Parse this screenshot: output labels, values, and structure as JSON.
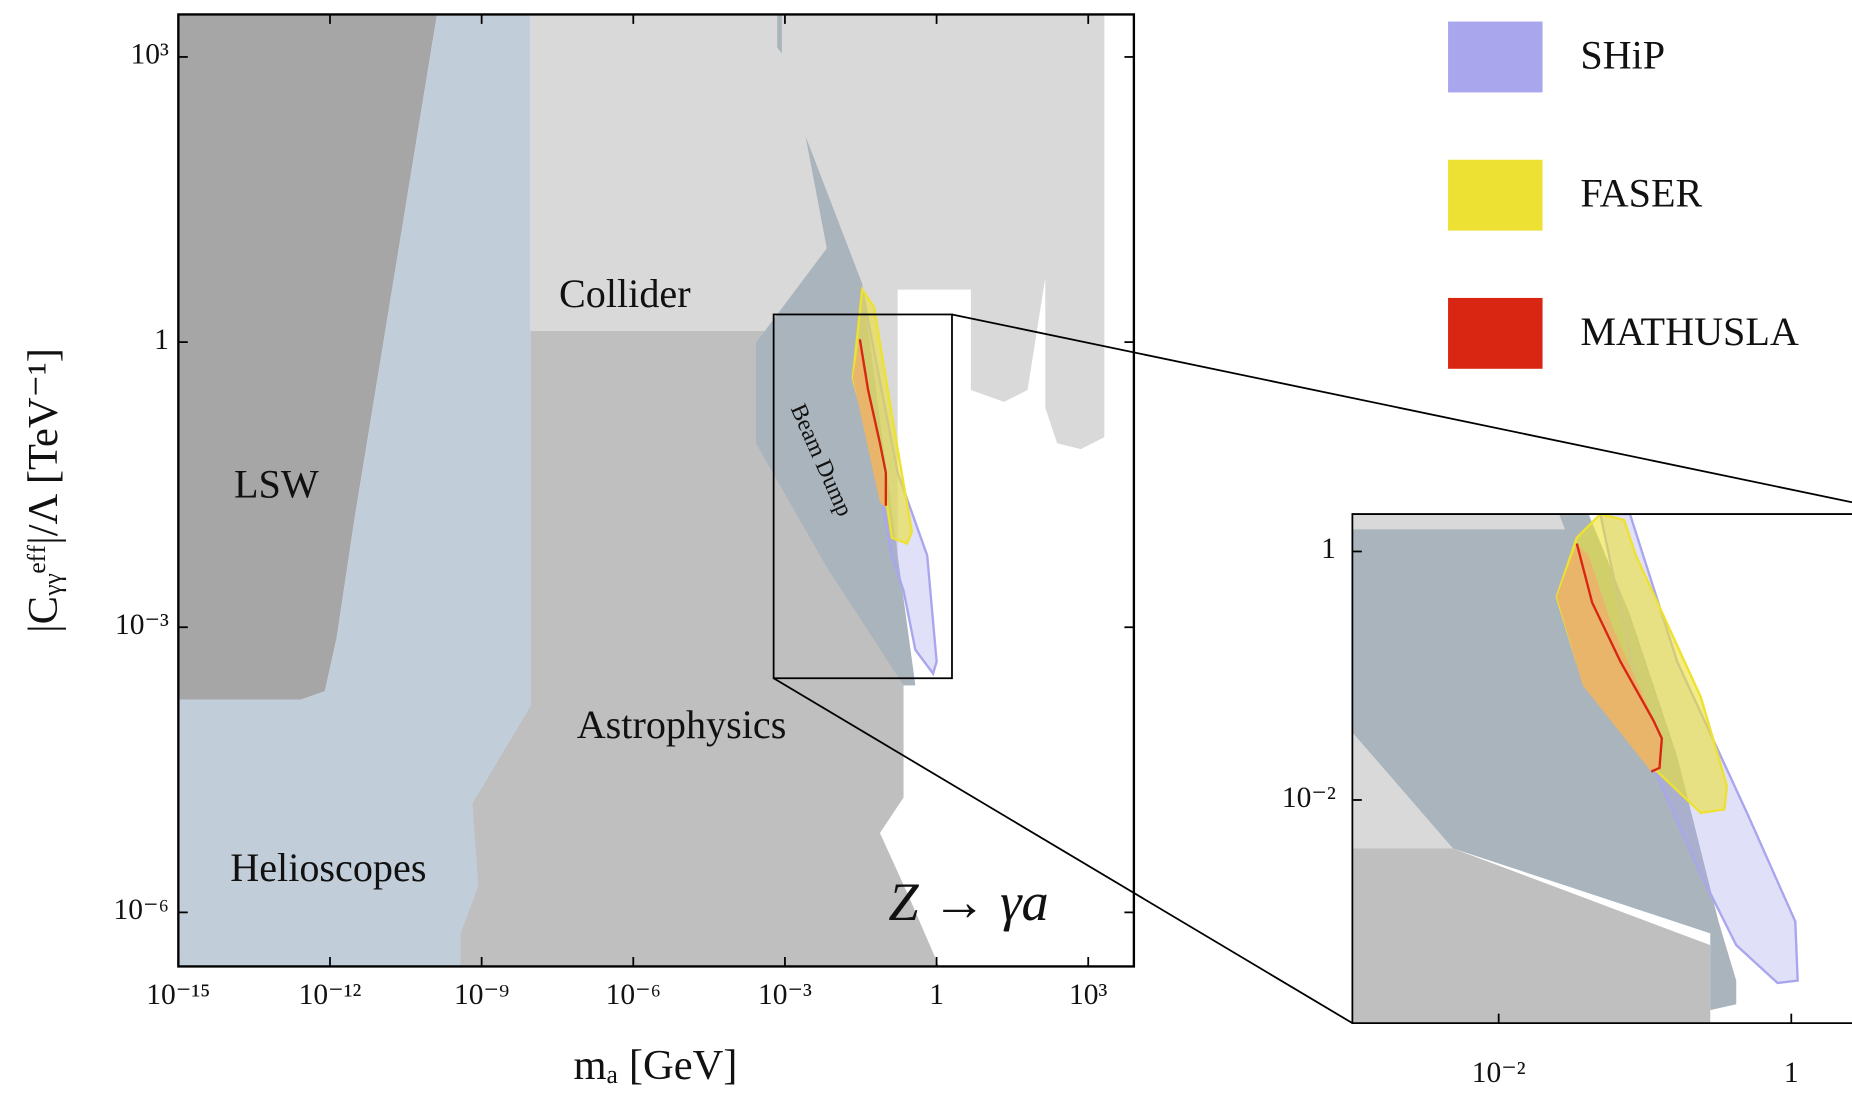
{
  "chart_data": [
    {
      "type": "region",
      "xlabel": "mₐ [GeV]",
      "ylabel": "|Cᵧᵧᵉᶠᶠ|/Λ [TeV⁻¹]",
      "log_x": true,
      "log_y": true,
      "xlim": [
        1e-15,
        8000
      ],
      "ylim": [
        2.7e-07,
        2800
      ],
      "xticks": [
        {
          "value": 1e-15,
          "label": "10⁻¹⁵"
        },
        {
          "value": 1e-12,
          "label": "10⁻¹²"
        },
        {
          "value": 1e-09,
          "label": "10⁻⁹"
        },
        {
          "value": 1e-06,
          "label": "10⁻⁶"
        },
        {
          "value": 0.001,
          "label": "10⁻³"
        },
        1,
        {
          "value": 1000,
          "label": "10³"
        }
      ],
      "yticks": [
        {
          "value": 1e-06,
          "label": "10⁻⁶"
        },
        {
          "value": 0.001,
          "label": "10⁻³"
        },
        1,
        {
          "value": 1000,
          "label": "10³"
        }
      ],
      "annotations": [
        "Collider",
        "Astrophysics",
        "LSW",
        "Helioscopes",
        "Beam Dump",
        "Z → γa"
      ],
      "legend": [
        {
          "name": "SHiP",
          "color": "#a9a6ee"
        },
        {
          "name": "FASER",
          "color": "#ede133"
        },
        {
          "name": "MATHUSLA",
          "color": "#d92613"
        }
      ]
    },
    {
      "type": "region",
      "log_x": true,
      "log_y": true,
      "xlim": [
        0.001,
        2.6
      ],
      "ylim": [
        0.00016,
        2
      ],
      "xticks": [
        {
          "value": 0.01,
          "label": "10⁻²"
        },
        1
      ],
      "yticks": [
        1,
        {
          "value": 0.01,
          "label": "10⁻²"
        }
      ]
    }
  ]
}
